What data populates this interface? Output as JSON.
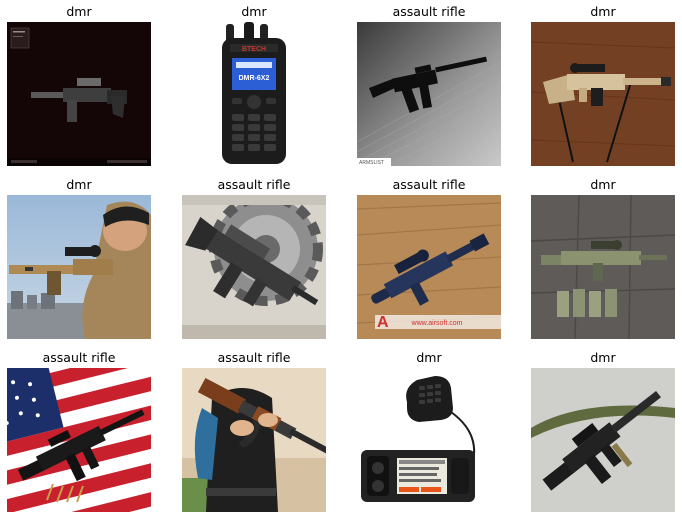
{
  "grid": {
    "cells": [
      {
        "label": "dmr",
        "image": "game-screenshot-rifle"
      },
      {
        "label": "dmr",
        "image": "handheld-dmr-radio"
      },
      {
        "label": "assault rifle",
        "image": "black-rifle-on-floor"
      },
      {
        "label": "dmr",
        "image": "tan-rifle-on-table"
      },
      {
        "label": "dmr",
        "image": "soldier-aiming-rifle"
      },
      {
        "label": "assault rifle",
        "image": "rifle-with-gears-art"
      },
      {
        "label": "assault rifle",
        "image": "toy-rifle-on-wood"
      },
      {
        "label": "dmr",
        "image": "camo-rifle-on-tiles"
      },
      {
        "label": "assault rifle",
        "image": "rifle-on-us-flag"
      },
      {
        "label": "assault rifle",
        "image": "person-holding-ak"
      },
      {
        "label": "dmr",
        "image": "mobile-dmr-radio"
      },
      {
        "label": "dmr",
        "image": "rifle-on-grey-background"
      }
    ]
  },
  "watermarks": {
    "cell3": "ARMSLIST",
    "cell7": "www.airsoft.com"
  },
  "radio_text": {
    "handheld_model": "DMR-6X2",
    "handheld_brand": "BTECH"
  }
}
